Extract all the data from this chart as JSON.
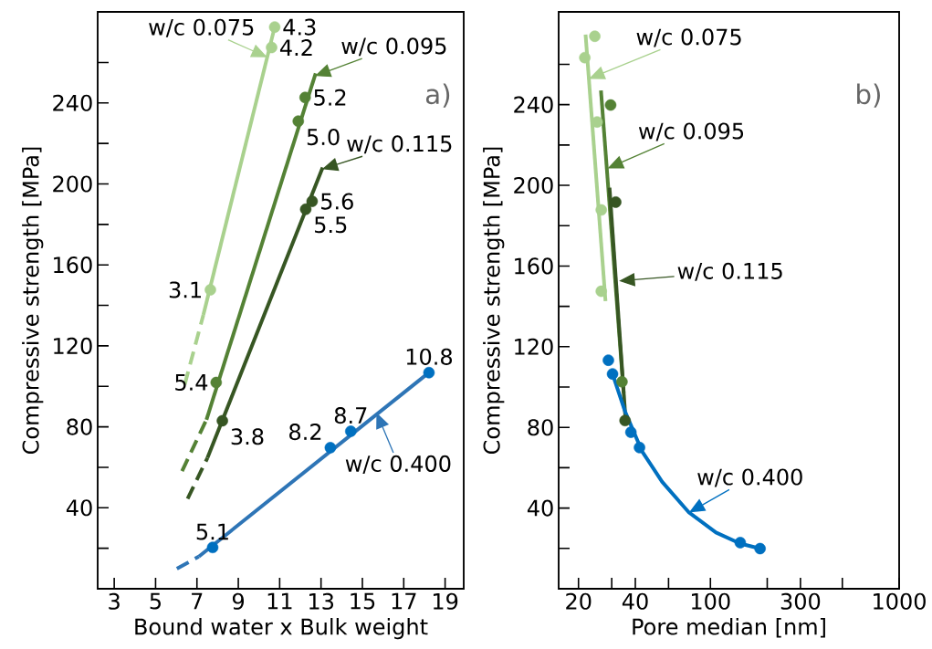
{
  "chart_data": [
    {
      "type": "scatter",
      "marker": "circle",
      "xlabel": "Bound water x Bulk weight",
      "ylabel": "Compressive strength [MPa]",
      "xlim": [
        2.2,
        19.9
      ],
      "ylim": [
        0,
        285
      ],
      "xticks": [
        3,
        5,
        7,
        9,
        11,
        13,
        15,
        17,
        19
      ],
      "yticks": [
        {
          "value": 20,
          "label": null
        },
        40,
        {
          "value": 60,
          "label": null
        },
        80,
        {
          "value": 100,
          "label": null
        },
        120,
        {
          "value": 140,
          "label": null
        },
        160,
        {
          "value": 180,
          "label": null
        },
        200,
        {
          "value": 220,
          "label": null
        },
        240,
        {
          "value": 260,
          "label": null
        }
      ],
      "series": [
        {
          "type": "line",
          "marker": "none",
          "color": "#a9d18e",
          "x": [
            7.31,
            10.76
          ],
          "values": [
            135.3,
            277.5
          ]
        },
        {
          "type": "line",
          "marker": "none",
          "line_style": "dashed",
          "color": "#a9d18e",
          "x": [
            6.41,
            7.31
          ],
          "values": [
            100.9,
            135.3
          ]
        },
        {
          "color": "#a9d18e",
          "x": [
            7.65,
            10.61,
            10.76
          ],
          "values": [
            147.7,
            267.4,
            277.5
          ]
        },
        {
          "type": "line",
          "marker": "none",
          "color": "#548235",
          "x": [
            7.46,
            12.74
          ],
          "values": [
            83.5,
            254.6
          ]
        },
        {
          "type": "line",
          "marker": "none",
          "line_style": "dashed",
          "color": "#548235",
          "x": [
            6.28,
            7.46
          ],
          "values": [
            58.1,
            83.5
          ]
        },
        {
          "color": "#548235",
          "x": [
            7.93,
            11.9,
            12.23
          ],
          "values": [
            101.9,
            231,
            242.7
          ]
        },
        {
          "type": "line",
          "marker": "none",
          "color": "#375623",
          "x": [
            7.51,
            13.08
          ],
          "values": [
            64.7,
            208.1
          ]
        },
        {
          "type": "line",
          "marker": "none",
          "line_style": "dashed",
          "color": "#375623",
          "x": [
            6.55,
            7.51
          ],
          "values": [
            44.5,
            64.7
          ]
        },
        {
          "color": "#375623",
          "x": [
            8.23,
            12.26,
            12.57
          ],
          "values": [
            83,
            187.5,
            191.4
          ]
        },
        {
          "type": "line",
          "marker": "none",
          "color": "#2e75b6",
          "x": [
            7.09,
            18.22
          ],
          "values": [
            15.9,
            106.8
          ]
        },
        {
          "type": "line",
          "marker": "none",
          "line_style": "dashed",
          "color": "#2e75b6",
          "x": [
            6.03,
            7.09
          ],
          "values": [
            9.9,
            15.9
          ]
        },
        {
          "color": "#0070c0",
          "x": [
            7.76,
            13.45,
            14.44,
            18.22
          ],
          "values": [
            20.4,
            69.7,
            77.8,
            106.8
          ]
        }
      ],
      "annotations": [
        "a)",
        {
          "text": "w/c 0.075",
          "x": 10.4,
          "y": 262.6
        },
        {
          "text": "w/c 0.095",
          "x": 12.7,
          "y": 253.3
        },
        {
          "text": "w/c 0.115",
          "x": 13.05,
          "y": 207.3
        },
        {
          "text": "w/c 0.400",
          "x": 15.68,
          "y": 87.1
        },
        {
          "text": "3.1",
          "x": 7.65,
          "y": 147.7
        },
        {
          "text": "4.2",
          "x": 10.61,
          "y": 267.4
        },
        {
          "text": "4.3",
          "x": 10.76,
          "y": 277.5
        },
        {
          "text": "5.4",
          "x": 7.93,
          "y": 101.9
        },
        {
          "text": "5.0",
          "x": 11.9,
          "y": 231
        },
        {
          "text": "5.2",
          "x": 12.23,
          "y": 242.7
        },
        {
          "text": "3.8",
          "x": 8.23,
          "y": 83
        },
        {
          "text": "5.5",
          "x": 12.26,
          "y": 187.5
        },
        {
          "text": "5.6",
          "x": 12.57,
          "y": 191.4
        },
        {
          "text": "5.1",
          "x": 7.76,
          "y": 20.4
        },
        {
          "text": "8.2",
          "x": 13.45,
          "y": 69.7
        },
        {
          "text": "8.7",
          "x": 14.44,
          "y": 77.8
        },
        {
          "text": "10.8",
          "x": 18.22,
          "y": 106.8
        }
      ]
    },
    {
      "type": "scatter",
      "marker": "circle",
      "log": "x",
      "xlabel": "Pore median [nm]",
      "ylabel": "Compressive strength [MPa]",
      "xlim": [
        15.7,
        1000
      ],
      "ylim": [
        0,
        286
      ],
      "xticks": [
        20,
        {
          "value": 30,
          "label": null
        },
        40,
        {
          "value": 60,
          "label": null
        },
        100,
        {
          "value": 200,
          "label": null
        },
        300,
        {
          "value": 500,
          "label": null
        },
        1000
      ],
      "yticks": [
        {
          "value": 20,
          "label": null
        },
        40,
        {
          "value": 60,
          "label": null
        },
        80,
        {
          "value": 100,
          "label": null
        },
        120,
        {
          "value": 140,
          "label": null
        },
        160,
        {
          "value": 180,
          "label": null
        },
        200,
        {
          "value": 220,
          "label": null
        },
        240,
        {
          "value": 260,
          "label": null
        }
      ],
      "series": [
        {
          "type": "line",
          "marker": "none",
          "color": "#a9d18e",
          "x": [
            21.8,
            27.8
          ],
          "values": [
            274.7,
            142.6
          ]
        },
        {
          "color": "#a9d18e",
          "x": [
            24.4,
            21.6,
            25.1,
            26.4,
            26.4
          ],
          "values": [
            273.9,
            263.3,
            231.4,
            187.8,
            147.5
          ]
        },
        {
          "type": "line",
          "marker": "none",
          "color": "#548235",
          "x": [
            26.3,
            34.7
          ],
          "values": [
            247,
            97
          ]
        },
        {
          "color": "#548235",
          "x": [
            29.6,
            34
          ],
          "values": [
            239.8,
            102.6
          ]
        },
        {
          "type": "line",
          "marker": "none",
          "color": "#375623",
          "x": [
            29.2,
            35.6
          ],
          "values": [
            198.8,
            82.5
          ]
        },
        {
          "color": "#375623",
          "x": [
            31.5,
            35.3
          ],
          "values": [
            191.7,
            83.4
          ]
        },
        {
          "type": "line",
          "marker": "none",
          "color": "#0070c0",
          "x": [
            30.3,
            35.3,
            43.4,
            55.5,
            77,
            107,
            143.9,
            183.3
          ],
          "values": [
            106.5,
            87.9,
            68.2,
            53,
            37.8,
            27.9,
            22.4,
            19.9
          ]
        },
        {
          "color": "#0070c0",
          "x": [
            28.8,
            30.3,
            37.9,
            42.1,
            143.9,
            183.3
          ],
          "values": [
            113.3,
            106.5,
            77.6,
            70,
            22.9,
            19.9
          ]
        }
      ],
      "annotations": [
        "b)",
        {
          "text": "w/c 0.075",
          "x": 22.7,
          "y": 252.8
        },
        {
          "text": "w/c 0.095",
          "x": 28.5,
          "y": 208.4
        },
        {
          "text": "w/c 0.115",
          "x": 32.8,
          "y": 152.6
        },
        {
          "text": "w/c 0.400",
          "x": 77,
          "y": 37.8
        }
      ]
    }
  ]
}
